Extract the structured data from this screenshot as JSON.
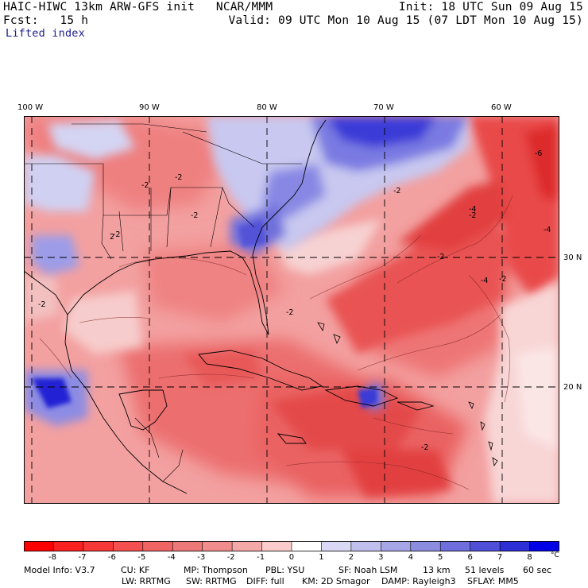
{
  "header": {
    "title_left": "HAIC-HIWC 13km ARW-GFS init   NCAR/MMM",
    "init": "Init: 18 UTC Sun 09 Aug 15",
    "fcst_label": "Fcst:   15 h",
    "valid": "Valid: 09 UTC Mon 10 Aug 15 (07 LDT Mon 10 Aug 15)",
    "field": "Lifted index"
  },
  "map": {
    "lon_labels": [
      "100 W",
      "90 W",
      "80 W",
      "70 W",
      "60 W"
    ],
    "lat_labels": [
      "30 N",
      "20 N"
    ],
    "contour_labels": [
      "-2",
      "-2",
      "-2",
      "-2",
      "-2",
      "-4",
      "-4",
      "-6",
      "-2",
      "-4",
      "-2",
      "2",
      "-2",
      "-2",
      "-2",
      "-2"
    ]
  },
  "colorbar": {
    "ticks": [
      "-8",
      "-7",
      "-6",
      "-5",
      "-4",
      "-3",
      "-2",
      "-1",
      "0",
      "1",
      "2",
      "3",
      "4",
      "5",
      "6",
      "7",
      "8"
    ],
    "unit": "°C",
    "colors": [
      "#ff0000",
      "#fd2020",
      "#f83838",
      "#f45050",
      "#f06464",
      "#ec7878",
      "#f08c8c",
      "#f5a8a8",
      "#fccccc",
      "#ffffff",
      "#d9d9f5",
      "#c0c0ee",
      "#a6a6e6",
      "#8c8ce0",
      "#6e6edc",
      "#4f4fd8",
      "#2f2fd6",
      "#0000e6"
    ]
  },
  "footer": {
    "line1": [
      "Model Info: V3.7",
      "CU: KF",
      "MP: Thompson",
      "PBL: YSU",
      "SF: Noah LSM",
      "13 km",
      "51 levels",
      "60 sec"
    ],
    "line2": [
      "LW: RRTMG",
      "SW: RRTMG",
      "DIFF: full",
      "KM: 2D Smagor",
      "DAMP: Rayleigh3",
      "SFLAY: MM5"
    ]
  }
}
